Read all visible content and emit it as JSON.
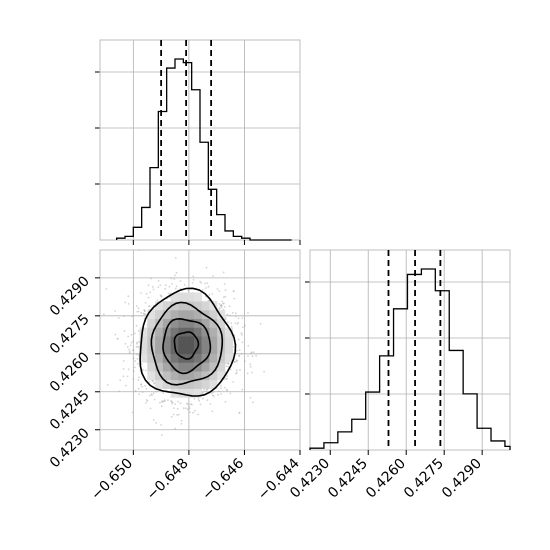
{
  "chart_data": {
    "type": "corner",
    "parameters": [
      {
        "name": "",
        "range": [
          -0.6512,
          -0.644
        ]
      },
      {
        "name": "",
        "range": [
          0.4222,
          0.4301
        ]
      }
    ],
    "marginal_1": {
      "type": "histogram",
      "bin_edges": [
        -0.6506,
        -0.6503,
        -0.65,
        -0.6497,
        -0.6494,
        -0.6491,
        -0.6488,
        -0.6485,
        -0.6482,
        -0.6479,
        -0.6476,
        -0.6473,
        -0.647,
        -0.6467,
        -0.6464,
        -0.6461,
        -0.6458,
        -0.6455,
        -0.6452,
        -0.6449,
        -0.6446,
        -0.6443
      ],
      "counts": [
        0.01,
        0.02,
        0.07,
        0.18,
        0.4,
        0.71,
        0.95,
        1.0,
        0.98,
        0.83,
        0.54,
        0.28,
        0.14,
        0.05,
        0.02,
        0.01,
        0,
        0,
        0,
        0,
        0
      ],
      "quantiles": [
        -0.649,
        -0.6481,
        -0.6472
      ],
      "x_ticks": [
        -0.65,
        -0.648,
        -0.646,
        -0.644
      ],
      "grid": true
    },
    "marginal_2": {
      "type": "histogram",
      "bin_edges": [
        0.4222,
        0.42275,
        0.4233,
        0.42385,
        0.4244,
        0.42495,
        0.4255,
        0.42605,
        0.4266,
        0.42715,
        0.4277,
        0.42825,
        0.4288,
        0.42935,
        0.4299,
        0.4301
      ],
      "counts": [
        0.01,
        0.04,
        0.1,
        0.17,
        0.32,
        0.52,
        0.78,
        0.97,
        1.0,
        0.88,
        0.55,
        0.31,
        0.12,
        0.05,
        0.02
      ],
      "quantiles": [
        0.4253,
        0.42635,
        0.42735
      ],
      "x_ticks": [
        0.423,
        0.4245,
        0.426,
        0.4275,
        0.429
      ],
      "grid": true
    },
    "joint": {
      "type": "2d-density",
      "x_param": 1,
      "y_param": 2,
      "center": [
        -0.6481,
        0.42635
      ],
      "sigma": [
        0.00085,
        0.00105
      ],
      "contour_levels_sigma": [
        0.5,
        1.0,
        1.5,
        2.0
      ],
      "x_ticks": [
        -0.65,
        -0.648,
        -0.646,
        -0.644
      ],
      "y_ticks": [
        0.423,
        0.4245,
        0.426,
        0.4275,
        0.429
      ],
      "grid": true
    },
    "tick_labels_x_joint": [
      "−0.650",
      "−0.648",
      "−0.646",
      "−0.644"
    ],
    "tick_labels_y_joint": [
      "0.4230",
      "0.4245",
      "0.4260",
      "0.4275",
      "0.4290"
    ],
    "tick_labels_x_marginal_2": [
      "0.4230",
      "0.4245",
      "0.4260",
      "0.4275",
      "0.4290"
    ]
  }
}
